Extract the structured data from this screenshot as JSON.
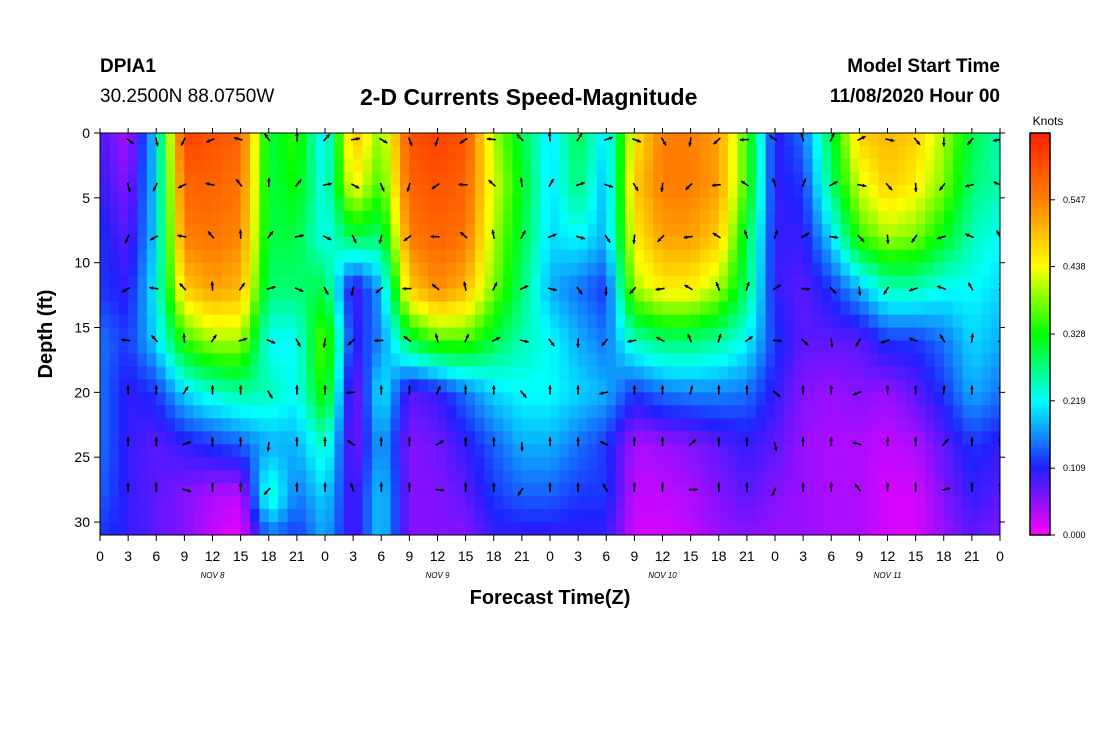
{
  "header": {
    "station_id": "DPIA1",
    "coords": "30.2500N 88.0750W",
    "title": "2-D Currents Speed-Magnitude",
    "model_label": "Model Start Time",
    "model_time": "11/08/2020 Hour 00"
  },
  "chart_data": {
    "type": "heatmap",
    "title": "2-D Currents Speed-Magnitude",
    "xlabel": "Forecast Time(Z)",
    "ylabel": "Depth (ft)",
    "x_tick_labels": [
      "0",
      "3",
      "6",
      "9",
      "12",
      "15",
      "18",
      "21",
      "0",
      "3",
      "6",
      "9",
      "12",
      "15",
      "18",
      "21",
      "0",
      "3",
      "6",
      "9",
      "12",
      "15",
      "18",
      "21",
      "0",
      "3",
      "6",
      "9",
      "12",
      "15",
      "18",
      "21",
      "0"
    ],
    "day_labels": [
      {
        "label": "NOV 8",
        "hour": 12
      },
      {
        "label": "NOV 9",
        "hour": 36
      },
      {
        "label": "NOV 10",
        "hour": 60
      },
      {
        "label": "NOV 11",
        "hour": 84
      }
    ],
    "xlim": [
      0,
      96
    ],
    "y_ticks": [
      0,
      5,
      10,
      15,
      20,
      25,
      30
    ],
    "ylim": [
      0,
      31
    ],
    "y_inverted": true,
    "colorbar": {
      "label": "Knots",
      "ticks": [
        "0.000",
        "0.109",
        "0.219",
        "0.328",
        "0.438",
        "0.547"
      ],
      "range": [
        0,
        0.656
      ],
      "colors": [
        "#ff00ff",
        "#2020ff",
        "#00ffff",
        "#00ff00",
        "#ffff00",
        "#ff8000",
        "#ff2000"
      ]
    },
    "grid_hours": [
      0,
      3,
      6,
      9,
      12,
      15,
      18,
      21,
      24,
      27,
      30,
      33,
      36,
      39,
      42,
      45,
      48,
      51,
      54,
      57,
      60,
      63,
      66,
      69,
      72,
      75,
      78,
      81,
      84,
      87,
      90,
      93,
      96
    ],
    "grid_depths": [
      0,
      4,
      8,
      12,
      16,
      20,
      24,
      28,
      31
    ],
    "speed_grid_knots": [
      [
        0.09,
        0.04,
        0.2,
        0.62,
        0.6,
        0.58,
        0.3,
        0.35,
        0.2,
        0.5,
        0.38,
        0.6,
        0.62,
        0.6,
        0.4,
        0.3,
        0.2,
        0.3,
        0.2,
        0.45,
        0.55,
        0.55,
        0.52,
        0.35,
        0.1,
        0.15,
        0.3,
        0.48,
        0.5,
        0.48,
        0.4,
        0.3,
        0.25
      ],
      [
        0.1,
        0.06,
        0.2,
        0.58,
        0.58,
        0.56,
        0.3,
        0.33,
        0.22,
        0.45,
        0.35,
        0.58,
        0.6,
        0.58,
        0.42,
        0.32,
        0.2,
        0.28,
        0.18,
        0.48,
        0.55,
        0.55,
        0.52,
        0.35,
        0.1,
        0.12,
        0.28,
        0.42,
        0.48,
        0.45,
        0.38,
        0.28,
        0.25
      ],
      [
        0.12,
        0.08,
        0.2,
        0.55,
        0.56,
        0.54,
        0.3,
        0.3,
        0.22,
        0.3,
        0.28,
        0.55,
        0.58,
        0.56,
        0.4,
        0.3,
        0.2,
        0.22,
        0.18,
        0.45,
        0.52,
        0.52,
        0.48,
        0.3,
        0.1,
        0.1,
        0.2,
        0.35,
        0.4,
        0.38,
        0.32,
        0.25,
        0.22
      ],
      [
        0.12,
        0.1,
        0.22,
        0.48,
        0.52,
        0.5,
        0.28,
        0.28,
        0.3,
        0.08,
        0.18,
        0.48,
        0.54,
        0.5,
        0.38,
        0.28,
        0.18,
        0.15,
        0.12,
        0.4,
        0.45,
        0.45,
        0.4,
        0.28,
        0.1,
        0.08,
        0.12,
        0.18,
        0.25,
        0.25,
        0.22,
        0.22,
        0.2
      ],
      [
        0.15,
        0.12,
        0.2,
        0.35,
        0.4,
        0.4,
        0.22,
        0.22,
        0.38,
        0.1,
        0.16,
        0.3,
        0.36,
        0.36,
        0.3,
        0.25,
        0.22,
        0.18,
        0.15,
        0.25,
        0.28,
        0.28,
        0.26,
        0.22,
        0.12,
        0.08,
        0.08,
        0.08,
        0.12,
        0.12,
        0.15,
        0.2,
        0.18
      ],
      [
        0.15,
        0.1,
        0.12,
        0.2,
        0.24,
        0.26,
        0.25,
        0.22,
        0.35,
        0.05,
        0.22,
        0.08,
        0.1,
        0.15,
        0.2,
        0.22,
        0.22,
        0.2,
        0.18,
        0.12,
        0.15,
        0.16,
        0.16,
        0.15,
        0.1,
        0.06,
        0.05,
        0.06,
        0.05,
        0.08,
        0.12,
        0.18,
        0.15
      ],
      [
        0.15,
        0.1,
        0.08,
        0.1,
        0.12,
        0.14,
        0.18,
        0.18,
        0.25,
        0.06,
        0.18,
        0.06,
        0.07,
        0.1,
        0.14,
        0.18,
        0.18,
        0.15,
        0.12,
        0.04,
        0.05,
        0.06,
        0.08,
        0.1,
        0.08,
        0.05,
        0.04,
        0.04,
        0.03,
        0.04,
        0.08,
        0.12,
        0.1
      ],
      [
        0.14,
        0.1,
        0.08,
        0.06,
        0.04,
        0.03,
        0.25,
        0.15,
        0.2,
        0.08,
        0.2,
        0.06,
        0.06,
        0.08,
        0.12,
        0.14,
        0.14,
        0.12,
        0.12,
        0.03,
        0.03,
        0.04,
        0.06,
        0.08,
        0.06,
        0.05,
        0.04,
        0.04,
        0.02,
        0.02,
        0.06,
        0.1,
        0.08
      ],
      [
        0.12,
        0.1,
        0.08,
        0.06,
        0.03,
        0.01,
        0.15,
        0.12,
        0.18,
        0.08,
        0.2,
        0.06,
        0.06,
        0.06,
        0.1,
        0.1,
        0.1,
        0.1,
        0.1,
        0.02,
        0.02,
        0.03,
        0.05,
        0.06,
        0.05,
        0.05,
        0.04,
        0.04,
        0.02,
        0.02,
        0.05,
        0.08,
        0.06
      ]
    ]
  }
}
